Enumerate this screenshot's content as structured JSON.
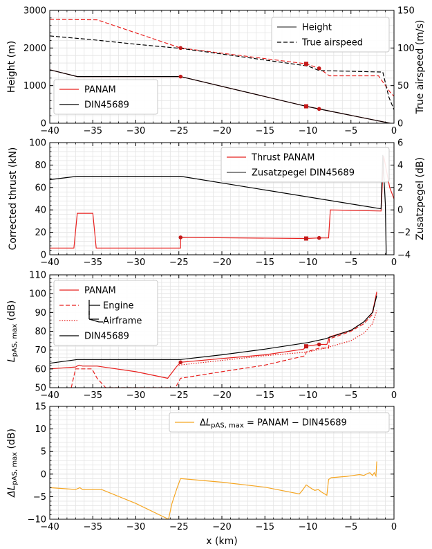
{
  "chart_data": [
    {
      "type": "line",
      "xlim": [
        -40,
        0
      ],
      "ylim": [
        0,
        3000
      ],
      "ylim_right": [
        0,
        150
      ],
      "ylabel": "Height (m)",
      "ylabel_right": "True airspeed (m/s)",
      "xticks": [
        -40,
        -35,
        -30,
        -25,
        -20,
        -15,
        -10,
        -5,
        0
      ],
      "yticks": [
        0,
        1000,
        2000,
        3000
      ],
      "yticks_right": [
        0,
        50,
        100,
        150
      ],
      "grid": true,
      "legends": [
        {
          "position": "top-right",
          "entries": [
            {
              "label": "Height",
              "color": "#444444",
              "dash": "solid"
            },
            {
              "label": "True airspeed",
              "color": "#000000",
              "dash": "dashed"
            }
          ]
        },
        {
          "position": "bottom-left",
          "entries": [
            {
              "label": "PANAM",
              "color": "#e8201e",
              "dash": "solid"
            },
            {
              "label": "DIN45689",
              "color": "#000000",
              "dash": "solid"
            }
          ]
        }
      ],
      "series": [
        {
          "name": "PANAM",
          "color": "#e8201e",
          "dash": "solid",
          "axis": "left",
          "x": [
            -40,
            -36.8,
            -24.8,
            -10.2,
            -8.7,
            0
          ],
          "y": [
            1420,
            1240,
            1240,
            450,
            380,
            -20
          ]
        },
        {
          "name": "DIN45689",
          "color": "#000000",
          "dash": "solid",
          "axis": "left",
          "x": [
            -40,
            -36.8,
            -24.8,
            -10.2,
            -8.7,
            0
          ],
          "y": [
            1420,
            1240,
            1240,
            450,
            380,
            -20
          ]
        },
        {
          "color": "#e8201e",
          "dash": "dashed",
          "axis": "right",
          "x": [
            -40,
            -34.5,
            -24.8,
            -10.2,
            -8.7,
            -7.5,
            -1.8,
            -0.5,
            0
          ],
          "y": [
            138,
            137.5,
            100,
            79,
            73,
            63,
            63,
            42,
            36
          ]
        },
        {
          "color": "#000000",
          "dash": "dashed",
          "axis": "right",
          "x": [
            -40,
            -35,
            -30,
            -24.8,
            -20,
            -15,
            -10,
            -8.7,
            -1.3,
            -0.6,
            0
          ],
          "y": [
            116,
            111,
            105,
            99.5,
            92,
            84,
            76,
            70,
            68,
            35,
            18
          ]
        }
      ],
      "markers": [
        {
          "shape": "circle",
          "color": "#c41a1a",
          "axis": "left",
          "x": -24.8,
          "y": 1240
        },
        {
          "shape": "square",
          "color": "#c41a1a",
          "axis": "left",
          "x": -10.2,
          "y": 450
        },
        {
          "shape": "circle",
          "color": "#c41a1a",
          "axis": "left",
          "x": -8.7,
          "y": 380
        },
        {
          "shape": "circle",
          "color": "#c41a1a",
          "axis": "right",
          "x": -24.8,
          "y": 100
        },
        {
          "shape": "square",
          "color": "#c41a1a",
          "axis": "right",
          "x": -10.2,
          "y": 79
        },
        {
          "shape": "circle",
          "color": "#c41a1a",
          "axis": "right",
          "x": -8.7,
          "y": 73
        }
      ]
    },
    {
      "type": "line",
      "xlim": [
        -40,
        0
      ],
      "ylim": [
        0,
        100
      ],
      "ylim_right": [
        -4,
        6
      ],
      "ylabel": "Corrected thrust (kN)",
      "ylabel_right": "Zusatzpegel (dB)",
      "xticks": [
        -40,
        -35,
        -30,
        -25,
        -20,
        -15,
        -10,
        -5,
        0
      ],
      "yticks": [
        0,
        20,
        40,
        60,
        80,
        100
      ],
      "yticks_right": [
        -4,
        -2,
        0,
        2,
        4,
        6
      ],
      "grid": true,
      "legends": [
        {
          "position": "top-right",
          "entries": [
            {
              "label": "Thrust PANAM",
              "color": "#e8201e",
              "dash": "solid"
            },
            {
              "label": "Zusatzpegel DIN45689",
              "color": "#444444",
              "dash": "solid"
            }
          ]
        }
      ],
      "series": [
        {
          "name": "Thrust PANAM",
          "color": "#e8201e",
          "dash": "solid",
          "axis": "left",
          "x": [
            -40,
            -37.2,
            -36.8,
            -35.0,
            -34.6,
            -24.8,
            -24.8,
            -10.2,
            -8.7,
            -7.6,
            -7.4,
            -1.5,
            -1.2,
            -0.5,
            0
          ],
          "y": [
            6,
            6,
            37,
            37,
            6,
            6,
            15.5,
            14.5,
            15,
            15,
            40,
            39,
            88,
            60,
            50
          ]
        },
        {
          "name": "Zusatzpegel DIN45689",
          "color": "#000000",
          "dash": "solid",
          "axis": "right",
          "x": [
            -40,
            -36.8,
            -24.8,
            -1.5,
            -1.3,
            -1.0,
            -0.9
          ],
          "y": [
            2.7,
            3.0,
            3.0,
            0.1,
            4.9,
            0.5,
            -4.0
          ]
        }
      ],
      "markers": [
        {
          "shape": "circle",
          "color": "#c41a1a",
          "axis": "left",
          "x": -24.8,
          "y": 15.5
        },
        {
          "shape": "square",
          "color": "#c41a1a",
          "axis": "left",
          "x": -10.2,
          "y": 14.5
        },
        {
          "shape": "circle",
          "color": "#c41a1a",
          "axis": "left",
          "x": -8.7,
          "y": 15
        }
      ]
    },
    {
      "type": "line",
      "xlim": [
        -40,
        0
      ],
      "ylim": [
        50,
        110
      ],
      "ylabel": "L",
      "ylabel_sub": "pAS, max",
      "ylabel_suffix": " (dB)",
      "xticks": [
        -40,
        -35,
        -30,
        -25,
        -20,
        -15,
        -10,
        -5,
        0
      ],
      "yticks": [
        50,
        60,
        70,
        80,
        90,
        100,
        110
      ],
      "grid": true,
      "legends": [
        {
          "position": "top-left",
          "entries": [
            {
              "label": "PANAM",
              "color": "#e8201e",
              "dash": "solid"
            },
            {
              "label": "Engine",
              "color": "#e8201e",
              "dash": "dashed"
            },
            {
              "label": "Airframe",
              "color": "#e8201e",
              "dash": "dotted"
            },
            {
              "label": "DIN45689",
              "color": "#000000",
              "dash": "solid"
            }
          ]
        }
      ],
      "series": [
        {
          "name": "PANAM",
          "color": "#e8201e",
          "dash": "solid",
          "x": [
            -40,
            -37,
            -36.6,
            -36.2,
            -34.5,
            -30,
            -26.3,
            -25.3,
            -24.8,
            -20,
            -15,
            -10.5,
            -10.2,
            -8.7,
            -7.8,
            -7.5,
            -5,
            -3.5,
            -2.5,
            -2
          ],
          "y": [
            60,
            61,
            62,
            61.5,
            61.5,
            58.5,
            55,
            61,
            63.5,
            65.5,
            67.5,
            70.5,
            72,
            73,
            73,
            77,
            80.5,
            85,
            90,
            101
          ]
        },
        {
          "name": "Engine",
          "color": "#e8201e",
          "dash": "dashed",
          "x": [
            -37.5,
            -37,
            -35.1,
            -34.5,
            -33.5,
            -25.4,
            -24.8,
            -20,
            -15,
            -10.3,
            -10.2,
            -8.7,
            -7.6,
            -7.5,
            -5,
            -3.5,
            -2.5,
            -2
          ],
          "y": [
            50,
            60,
            60,
            55,
            50,
            50,
            55,
            58.5,
            62,
            67,
            69,
            71,
            71,
            76,
            80,
            84,
            89,
            100
          ]
        },
        {
          "name": "Airframe",
          "color": "#e8201e",
          "dash": "dotted",
          "x": [
            -25,
            -20,
            -15,
            -10,
            -8,
            -5,
            -3.5,
            -2.5,
            -2
          ],
          "y": [
            62,
            64.5,
            67,
            69,
            71,
            75,
            79,
            84,
            91
          ]
        },
        {
          "name": "DIN45689",
          "color": "#000000",
          "dash": "solid",
          "x": [
            -40,
            -36.8,
            -24.8,
            -20,
            -15,
            -10,
            -8,
            -5,
            -3.5,
            -2.5,
            -2
          ],
          "y": [
            63,
            65,
            65,
            67.5,
            70.5,
            74,
            76,
            80.5,
            85,
            90,
            99
          ]
        }
      ],
      "markers": [
        {
          "shape": "circle",
          "color": "#c41a1a",
          "x": -24.8,
          "y": 63.5
        },
        {
          "shape": "square",
          "color": "#c41a1a",
          "x": -10.2,
          "y": 72
        },
        {
          "shape": "circle",
          "color": "#c41a1a",
          "x": -8.7,
          "y": 73
        }
      ]
    },
    {
      "type": "line",
      "xlim": [
        -40,
        0
      ],
      "ylim": [
        -10,
        15
      ],
      "ylabel": "ΔL",
      "ylabel_sub": "pAS, max",
      "ylabel_suffix": " (dB)",
      "xlabel": "x (km)",
      "xticks": [
        -40,
        -35,
        -30,
        -25,
        -20,
        -15,
        -10,
        -5,
        0
      ],
      "yticks": [
        -10,
        -5,
        0,
        5,
        10,
        15
      ],
      "grid": true,
      "legends": [
        {
          "position": "top-right",
          "entries": [
            {
              "label": "ΔL",
              "sub": "pAS, max",
              "suffix": " = PANAM − DIN45689",
              "color": "#f5a623",
              "dash": "solid"
            }
          ]
        }
      ],
      "series": [
        {
          "name": "ΔL pAS, max = PANAM − DIN45689",
          "color": "#f5a623",
          "dash": "solid",
          "x": [
            -40,
            -37,
            -36.5,
            -36.2,
            -35.5,
            -34,
            -30,
            -26.2,
            -25.8,
            -25.2,
            -24.8,
            -20,
            -15,
            -11,
            -10.6,
            -10.2,
            -9.5,
            -9.2,
            -8.8,
            -8.4,
            -7.8,
            -7.6,
            -7.3,
            -5.5,
            -4,
            -3.5,
            -3,
            -2.8,
            -2.5,
            -2.3,
            -2.1,
            -2.0
          ],
          "y": [
            -3,
            -3.4,
            -3,
            -3.4,
            -3.4,
            -3.4,
            -6.5,
            -10,
            -6.5,
            -3,
            -1.0,
            -1.8,
            -2.9,
            -4.4,
            -3.5,
            -2.4,
            -3.3,
            -3.6,
            -3.4,
            -4.0,
            -4.7,
            -1.2,
            -0.8,
            -0.5,
            -0.1,
            -0.3,
            0.2,
            0.3,
            -0.3,
            0.3,
            -0.4,
            2.8
          ]
        }
      ],
      "markers": []
    }
  ]
}
